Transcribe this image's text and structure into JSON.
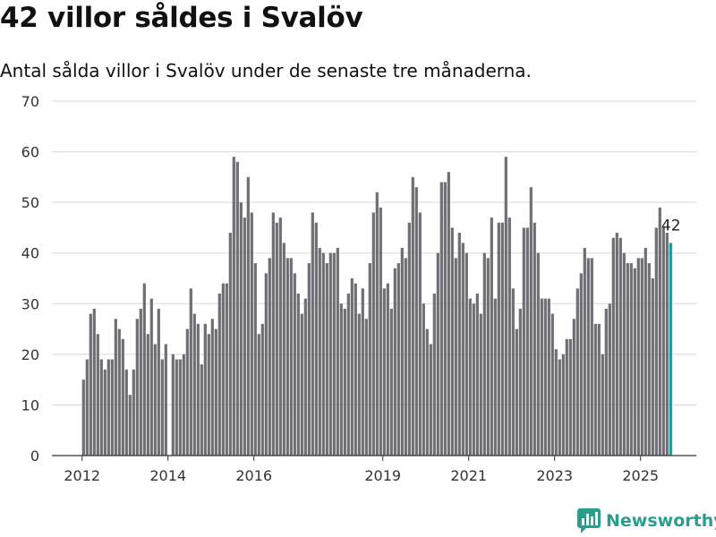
{
  "header": {
    "title": "42 villor såldes i Svalöv",
    "subtitle": "Antal sålda villor i Svalöv under de senaste tre månaderna."
  },
  "brand": {
    "name": "Newsworthy",
    "icon": "newsworthy-logo-icon"
  },
  "colors": {
    "bar": "#6f6e73",
    "highlight": "#1a9b93",
    "grid": "#d9d9d9",
    "axis": "#333333"
  },
  "chart_data": {
    "type": "bar",
    "title": "",
    "xlabel": "",
    "ylabel": "",
    "ylim": [
      0,
      70
    ],
    "yticks": [
      0,
      10,
      20,
      30,
      40,
      50,
      60,
      70
    ],
    "xticks": [
      {
        "label": "2012",
        "x": 2012.0
      },
      {
        "label": "2014",
        "x": 2014.0
      },
      {
        "label": "2016",
        "x": 2016.0
      },
      {
        "label": "2019",
        "x": 2019.0
      },
      {
        "label": "2021",
        "x": 2021.0
      },
      {
        "label": "2023",
        "x": 2023.0
      },
      {
        "label": "2025",
        "x": 2025.0
      }
    ],
    "x_start": "2012-01",
    "interval": "month",
    "grid": true,
    "highlight_last": true,
    "annotation": "42",
    "values": [
      15,
      19,
      28,
      29,
      24,
      19,
      17,
      19,
      19,
      27,
      25,
      23,
      17,
      12,
      17,
      27,
      29,
      34,
      24,
      31,
      22,
      29,
      19,
      22,
      0,
      20,
      19,
      19,
      20,
      25,
      33,
      28,
      26,
      18,
      26,
      24,
      27,
      25,
      32,
      34,
      34,
      44,
      59,
      58,
      50,
      47,
      55,
      48,
      38,
      24,
      26,
      36,
      39,
      48,
      46,
      47,
      42,
      39,
      39,
      36,
      32,
      28,
      31,
      38,
      48,
      46,
      41,
      40,
      38,
      40,
      40,
      41,
      30,
      29,
      32,
      35,
      34,
      28,
      33,
      27,
      38,
      48,
      52,
      49,
      33,
      34,
      29,
      37,
      38,
      41,
      39,
      46,
      55,
      53,
      48,
      30,
      25,
      22,
      32,
      40,
      54,
      54,
      56,
      45,
      39,
      44,
      42,
      40,
      31,
      30,
      32,
      28,
      40,
      39,
      47,
      31,
      46,
      46,
      59,
      47,
      33,
      25,
      29,
      45,
      45,
      53,
      46,
      40,
      31,
      31,
      31,
      28,
      21,
      19,
      20,
      23,
      23,
      27,
      33,
      36,
      41,
      39,
      39,
      26,
      26,
      20,
      29,
      30,
      43,
      44,
      43,
      40,
      38,
      38,
      37,
      39,
      39,
      41,
      38,
      35,
      45,
      49,
      45,
      44,
      42
    ]
  }
}
